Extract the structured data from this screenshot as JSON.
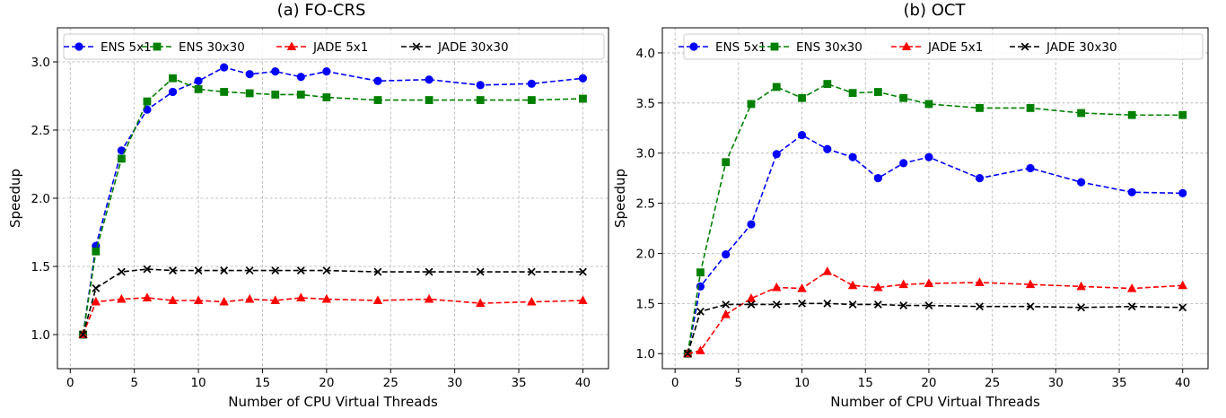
{
  "chart_data": [
    {
      "type": "line",
      "title": "(a) FO-CRS",
      "xlabel": "Number of CPU Virtual Threads",
      "ylabel": "Speedup",
      "xlim": [
        -1,
        42
      ],
      "ylim": [
        0.75,
        3.25
      ],
      "xticks": [
        0,
        5,
        10,
        15,
        20,
        25,
        30,
        35,
        40
      ],
      "xtick_labels": [
        "0",
        "5",
        "10",
        "15",
        "20",
        "25",
        "30",
        "35",
        "40"
      ],
      "yticks": [
        1.0,
        1.5,
        2.0,
        2.5,
        3.0
      ],
      "ytick_labels": [
        "1.0",
        "1.5",
        "2.0",
        "2.5",
        "3.0"
      ],
      "grid": true,
      "legend_position": "top",
      "x": [
        1,
        2,
        4,
        6,
        8,
        10,
        12,
        14,
        16,
        18,
        20,
        24,
        28,
        32,
        36,
        40
      ],
      "series": [
        {
          "name": "ENS 5x1",
          "color": "#0000ff",
          "marker": "circle",
          "values": [
            1.0,
            1.65,
            2.35,
            2.65,
            2.78,
            2.86,
            2.96,
            2.91,
            2.93,
            2.89,
            2.93,
            2.86,
            2.87,
            2.83,
            2.84,
            2.88
          ]
        },
        {
          "name": "ENS 30x30",
          "color": "#008000",
          "marker": "square",
          "values": [
            1.0,
            1.61,
            2.29,
            2.71,
            2.88,
            2.8,
            2.78,
            2.77,
            2.76,
            2.76,
            2.74,
            2.72,
            2.72,
            2.72,
            2.72,
            2.73
          ]
        },
        {
          "name": "JADE 5x1",
          "color": "#ff0000",
          "marker": "triangle",
          "values": [
            1.0,
            1.24,
            1.26,
            1.27,
            1.25,
            1.25,
            1.24,
            1.26,
            1.25,
            1.27,
            1.26,
            1.25,
            1.26,
            1.23,
            1.24,
            1.25
          ]
        },
        {
          "name": "JADE 30x30",
          "color": "#000000",
          "marker": "x",
          "values": [
            1.0,
            1.34,
            1.46,
            1.48,
            1.47,
            1.47,
            1.47,
            1.47,
            1.47,
            1.47,
            1.47,
            1.46,
            1.46,
            1.46,
            1.46,
            1.46
          ]
        }
      ]
    },
    {
      "type": "line",
      "title": "(b) OCT",
      "xlabel": "Number of CPU Virtual Threads",
      "ylabel": "Speedup",
      "xlim": [
        -1,
        42
      ],
      "ylim": [
        0.85,
        4.25
      ],
      "xticks": [
        0,
        5,
        10,
        15,
        20,
        25,
        30,
        35,
        40
      ],
      "xtick_labels": [
        "0",
        "5",
        "10",
        "15",
        "20",
        "25",
        "30",
        "35",
        "40"
      ],
      "yticks": [
        1.0,
        1.5,
        2.0,
        2.5,
        3.0,
        3.5,
        4.0
      ],
      "ytick_labels": [
        "1.0",
        "1.5",
        "2.0",
        "2.5",
        "3.0",
        "3.5",
        "4.0"
      ],
      "grid": true,
      "legend_position": "top",
      "x": [
        1,
        2,
        4,
        6,
        8,
        10,
        12,
        14,
        16,
        18,
        20,
        24,
        28,
        32,
        36,
        40
      ],
      "series": [
        {
          "name": "ENS 5x1",
          "color": "#0000ff",
          "marker": "circle",
          "values": [
            1.0,
            1.67,
            1.99,
            2.29,
            2.99,
            3.18,
            3.04,
            2.96,
            2.75,
            2.9,
            2.96,
            2.75,
            2.85,
            2.71,
            2.61,
            2.6
          ]
        },
        {
          "name": "ENS 30x30",
          "color": "#008000",
          "marker": "square",
          "values": [
            1.0,
            1.81,
            2.91,
            3.49,
            3.66,
            3.55,
            3.69,
            3.6,
            3.61,
            3.55,
            3.49,
            3.45,
            3.45,
            3.4,
            3.38,
            3.38
          ]
        },
        {
          "name": "JADE 5x1",
          "color": "#ff0000",
          "marker": "triangle",
          "values": [
            1.0,
            1.03,
            1.39,
            1.55,
            1.66,
            1.65,
            1.82,
            1.68,
            1.66,
            1.69,
            1.7,
            1.71,
            1.69,
            1.67,
            1.65,
            1.68
          ]
        },
        {
          "name": "JADE 30x30",
          "color": "#000000",
          "marker": "x",
          "values": [
            1.0,
            1.42,
            1.49,
            1.49,
            1.49,
            1.5,
            1.5,
            1.49,
            1.49,
            1.48,
            1.48,
            1.47,
            1.47,
            1.46,
            1.47,
            1.46
          ]
        }
      ]
    }
  ]
}
